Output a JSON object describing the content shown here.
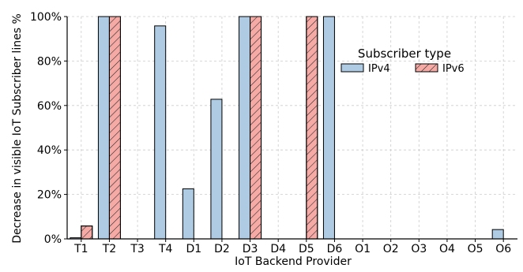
{
  "chart_data": {
    "type": "bar",
    "title": "",
    "xlabel": "IoT Backend Provider",
    "ylabel": "Decrease in visible IoT Subscriber lines %",
    "ylim": [
      0,
      100
    ],
    "yticks": [
      0,
      20,
      40,
      60,
      80,
      100
    ],
    "ytick_labels": [
      "0%",
      "20%",
      "40%",
      "60%",
      "80%",
      "100%"
    ],
    "grid": true,
    "categories": [
      "T1",
      "T2",
      "T3",
      "T4",
      "D1",
      "D2",
      "D3",
      "D4",
      "D5",
      "D6",
      "O1",
      "O2",
      "O3",
      "O4",
      "O5",
      "O6"
    ],
    "series": [
      {
        "name": "IPv4",
        "color": "#aecbe3",
        "hatch": false,
        "values": [
          0.5,
          100,
          0,
          95.8,
          22.5,
          62.8,
          100,
          0,
          0,
          100,
          0,
          0,
          0,
          0,
          0,
          4.2
        ]
      },
      {
        "name": "IPv6",
        "color": "#f6aaa5",
        "hatch": true,
        "values": [
          5.8,
          100,
          0,
          0,
          0,
          0,
          100,
          0,
          100,
          0,
          0,
          0,
          0,
          0,
          0,
          0
        ]
      }
    ],
    "legend": {
      "title": "Subscriber type",
      "placement": "upper-right"
    }
  }
}
